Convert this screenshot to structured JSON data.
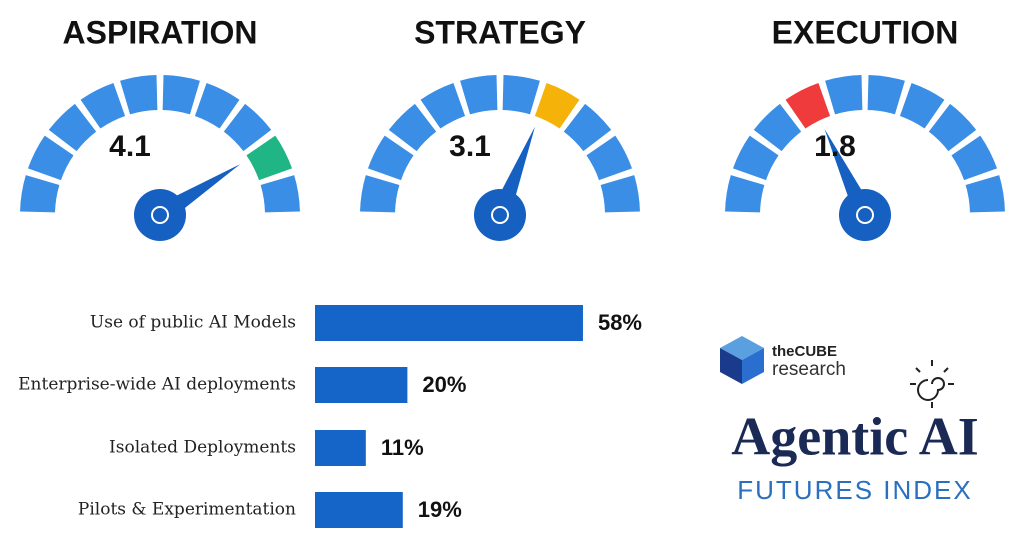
{
  "chart_data": [
    {
      "type": "gauge",
      "title": "ASPIRATION",
      "value": 4.1,
      "lim": [
        0,
        5
      ],
      "segments": 10,
      "color": "#1fb584"
    },
    {
      "type": "gauge",
      "title": "STRATEGY",
      "value": 3.1,
      "lim": [
        0,
        5
      ],
      "segments": 10,
      "color": "#f5b30a"
    },
    {
      "type": "gauge",
      "title": "EXECUTION",
      "value": 1.8,
      "lim": [
        0,
        5
      ],
      "segments": 10,
      "color": "#ef3b3b"
    },
    {
      "type": "hbar",
      "categories": [
        "Use of public AI Models",
        "Enterprise-wide AI deployments",
        "Isolated Deployments",
        "Pilots & Experimentation"
      ],
      "values": [
        58,
        20,
        11,
        19
      ],
      "value_labels": [
        "58%",
        "20%",
        "11%",
        "19%"
      ],
      "xlim": [
        0,
        100
      ],
      "color": "#1565c8"
    }
  ],
  "branding": {
    "company": "theCUBE",
    "company_sub": "research",
    "title": "Agentic AI",
    "subtitle": "FUTURES INDEX"
  }
}
